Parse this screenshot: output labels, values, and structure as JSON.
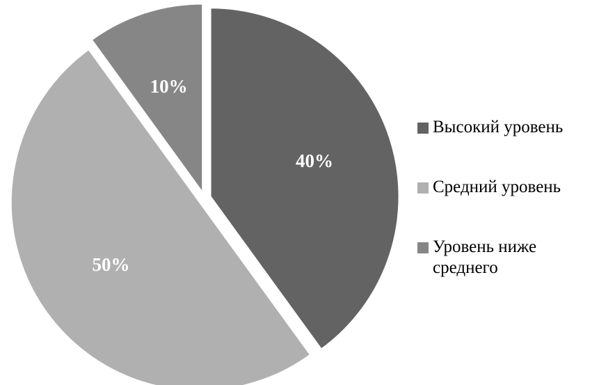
{
  "chart_data": {
    "type": "pie",
    "categories": [
      "Высокий уровень",
      "Средний уровень",
      "Уровень ниже среднего"
    ],
    "values": [
      40,
      50,
      10
    ],
    "value_labels": [
      "40%",
      "50%",
      "10%"
    ],
    "colors": [
      "#636363",
      "#b0b0b0",
      "#868686"
    ],
    "legend": "right"
  }
}
